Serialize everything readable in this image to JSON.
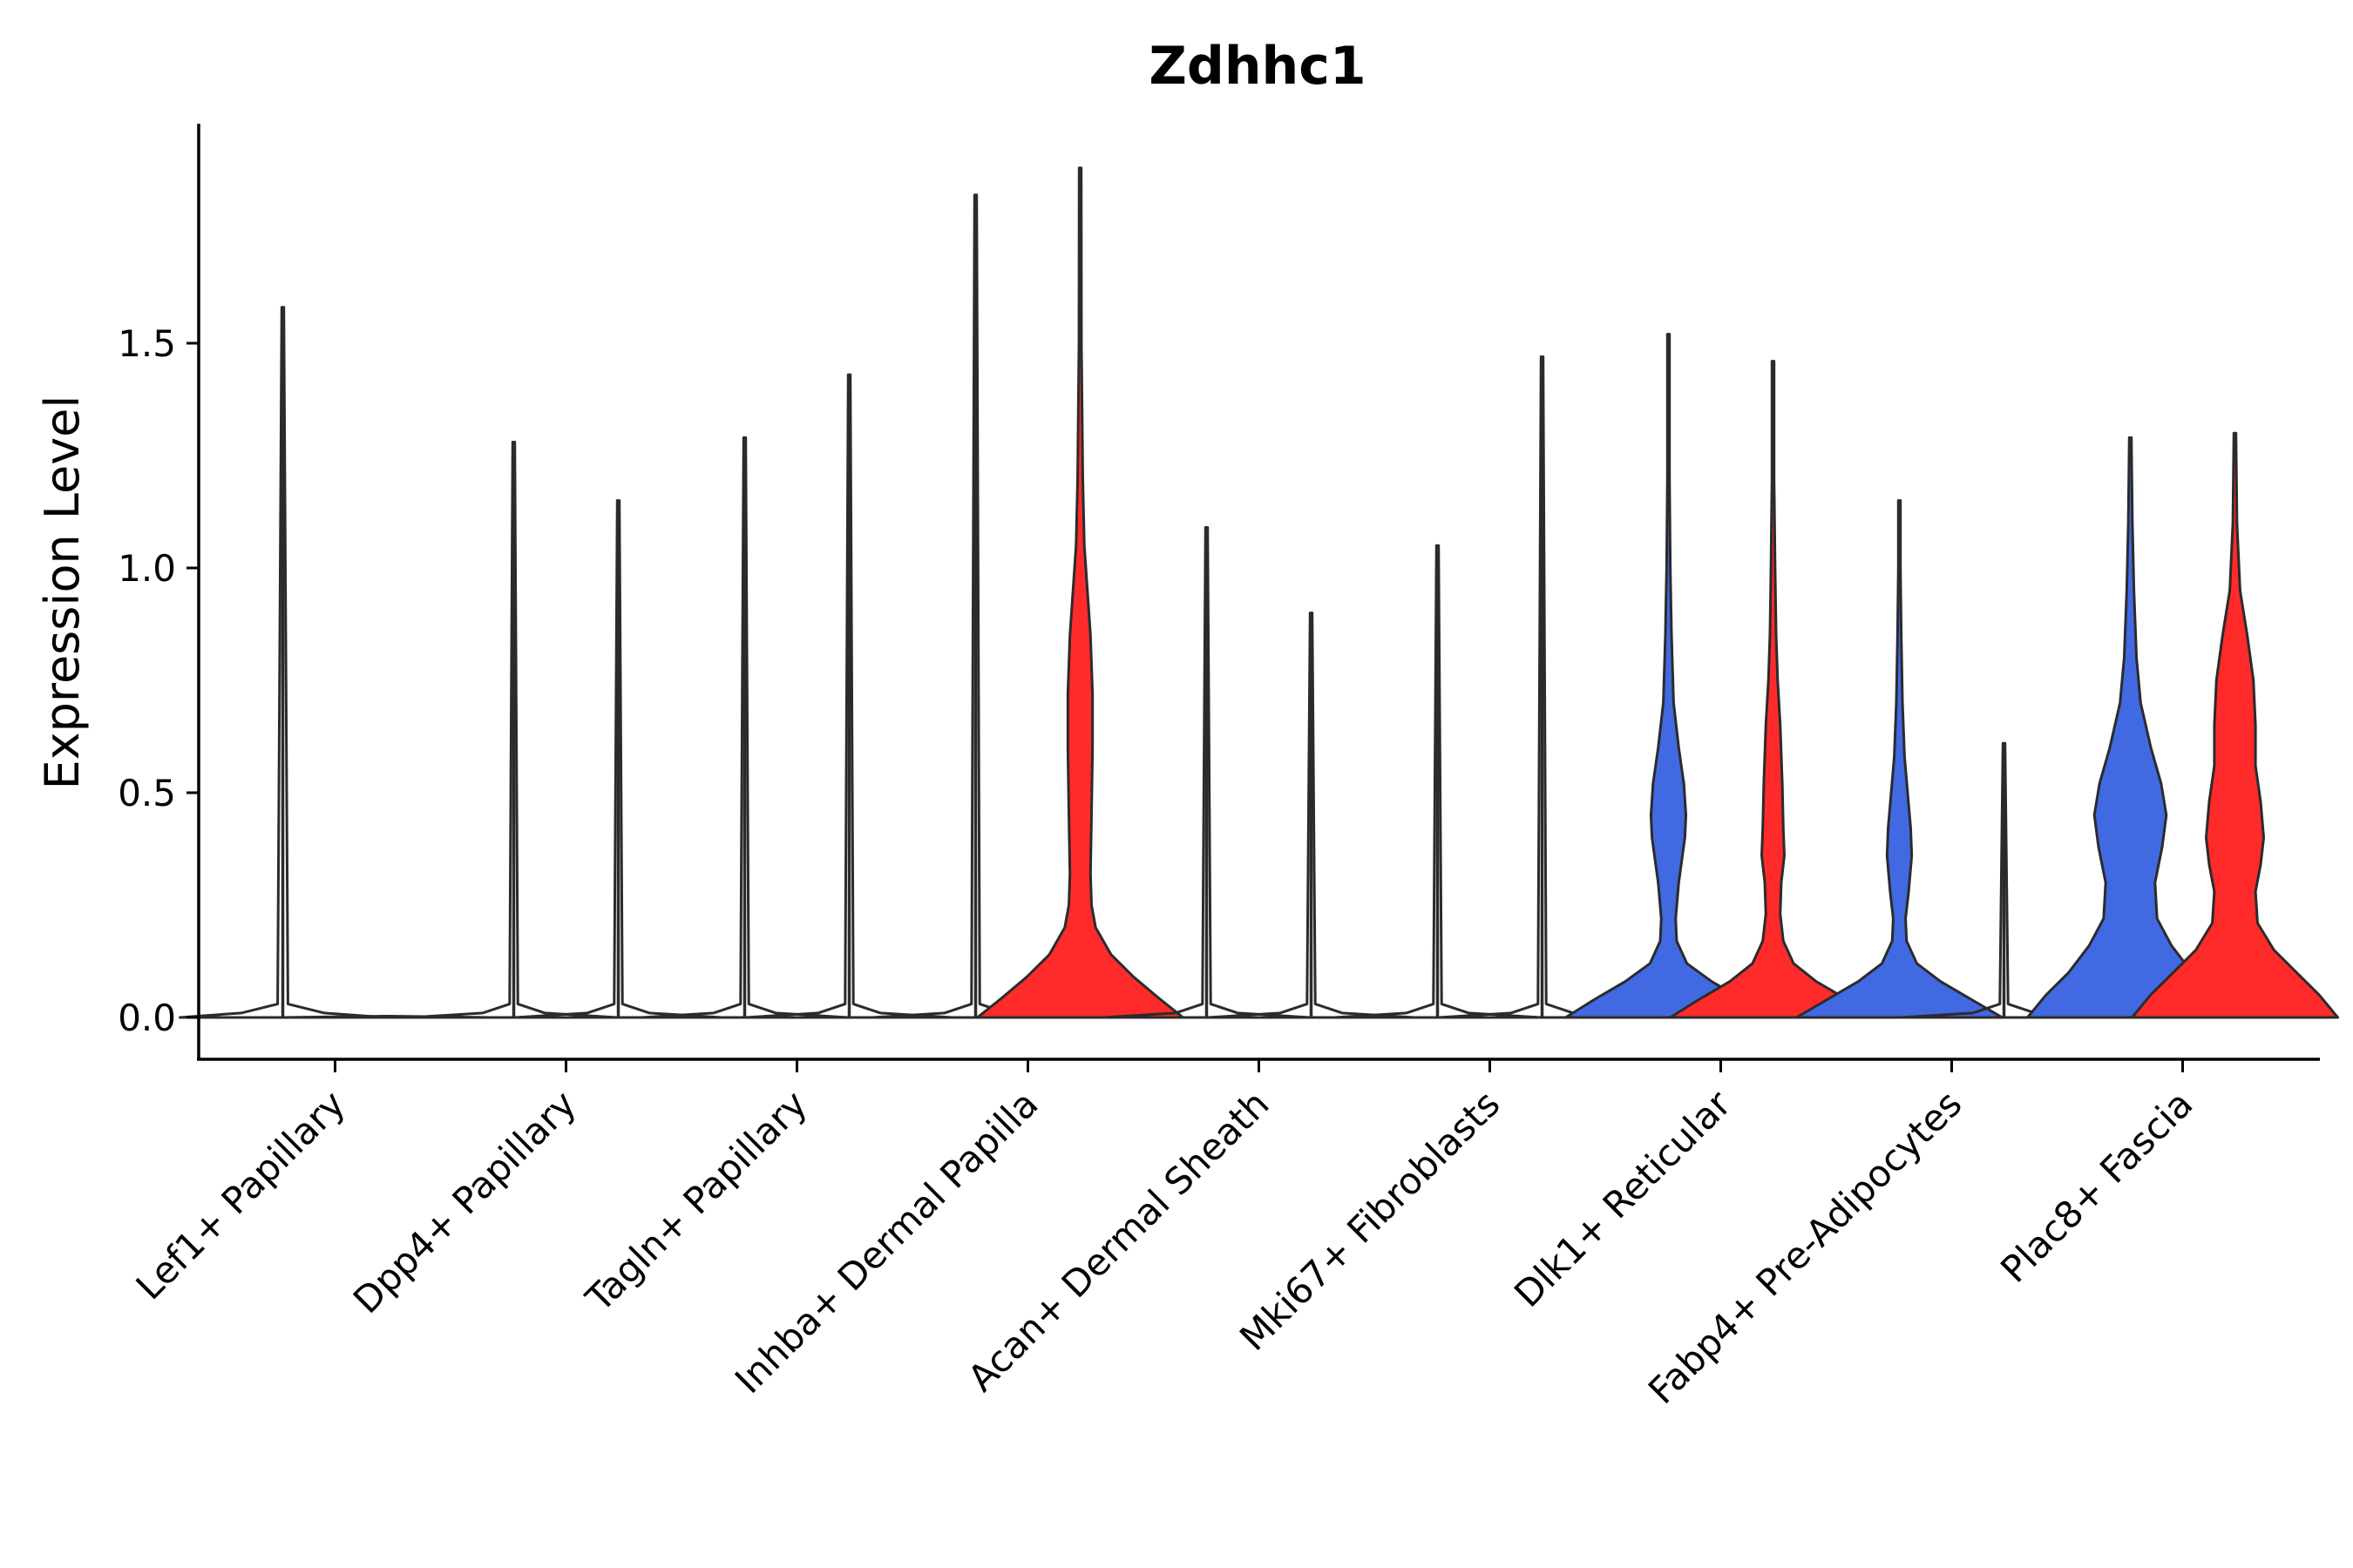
{
  "chart_data": {
    "type": "violin",
    "title": "Zdhhc1",
    "xlabel": "",
    "ylabel": "Expression Level",
    "ylim": [
      -0.1,
      1.98
    ],
    "yticks": [
      "0.0",
      "0.5",
      "1.0",
      "1.5"
    ],
    "ytick_values": [
      0,
      0.5,
      1.0,
      1.5
    ],
    "categories": [
      "Lef1+ Papillary",
      "Dpp4+ Papillary",
      "Tagln+ Papillary",
      "Inhba+ Dermal Papilla",
      "Acan+ Dermal Sheath",
      "Mki67+ Fibroblasts",
      "Dlk1+ Reticular",
      "Fabp4+ Pre-Adipocytes",
      "Plac8+ Fascia"
    ],
    "colors": {
      "blue": "#4169E1",
      "red": "#FF2A2A",
      "outline": "#2b2b2b"
    },
    "violins": [
      {
        "category": 0,
        "side": "left",
        "color": "blue",
        "max": 1.58,
        "profile": [
          [
            0,
            1.0
          ],
          [
            0.01,
            0.4
          ],
          [
            0.03,
            0.05
          ],
          [
            1.58,
            0.0
          ]
        ]
      },
      {
        "category": 0,
        "side": "right",
        "color": "red",
        "max": 0.0,
        "profile": [
          [
            0,
            1.0
          ],
          [
            0.003,
            0.0
          ]
        ]
      },
      {
        "category": 1,
        "side": "left",
        "color": "blue",
        "max": 1.28,
        "profile": [
          [
            0,
            1.0
          ],
          [
            0.01,
            0.3
          ],
          [
            0.03,
            0.04
          ],
          [
            1.28,
            0.0
          ]
        ]
      },
      {
        "category": 1,
        "side": "right",
        "color": "red",
        "max": 1.15,
        "profile": [
          [
            0,
            1.0
          ],
          [
            0.01,
            0.3
          ],
          [
            0.03,
            0.04
          ],
          [
            1.15,
            0.0
          ]
        ]
      },
      {
        "category": 2,
        "side": "left",
        "color": "blue",
        "max": 1.29,
        "profile": [
          [
            0,
            1.0
          ],
          [
            0.01,
            0.3
          ],
          [
            0.03,
            0.04
          ],
          [
            1.29,
            0.0
          ]
        ]
      },
      {
        "category": 2,
        "side": "right",
        "color": "red",
        "max": 1.43,
        "profile": [
          [
            0,
            1.0
          ],
          [
            0.01,
            0.3
          ],
          [
            0.03,
            0.04
          ],
          [
            1.43,
            0.0
          ]
        ]
      },
      {
        "category": 3,
        "side": "left",
        "color": "blue",
        "max": 1.83,
        "profile": [
          [
            0,
            1.0
          ],
          [
            0.01,
            0.3
          ],
          [
            0.03,
            0.04
          ],
          [
            1.83,
            0.0
          ]
        ]
      },
      {
        "category": 3,
        "side": "right",
        "color": "red",
        "max": 1.89,
        "fill": true,
        "profile": [
          [
            0,
            1.0
          ],
          [
            0.04,
            0.78
          ],
          [
            0.09,
            0.52
          ],
          [
            0.14,
            0.3
          ],
          [
            0.2,
            0.15
          ],
          [
            0.25,
            0.11
          ],
          [
            0.32,
            0.1
          ],
          [
            0.45,
            0.11
          ],
          [
            0.6,
            0.12
          ],
          [
            0.72,
            0.12
          ],
          [
            0.85,
            0.1
          ],
          [
            0.95,
            0.07
          ],
          [
            1.05,
            0.04
          ],
          [
            1.2,
            0.025
          ],
          [
            1.5,
            0.012
          ],
          [
            1.89,
            0.0
          ]
        ]
      },
      {
        "category": 4,
        "side": "left",
        "color": "blue",
        "max": 1.09,
        "profile": [
          [
            0,
            1.0
          ],
          [
            0.01,
            0.3
          ],
          [
            0.03,
            0.04
          ],
          [
            1.09,
            0.0
          ]
        ]
      },
      {
        "category": 4,
        "side": "right",
        "color": "red",
        "max": 0.9,
        "profile": [
          [
            0,
            1.0
          ],
          [
            0.01,
            0.3
          ],
          [
            0.03,
            0.04
          ],
          [
            0.9,
            0.0
          ]
        ]
      },
      {
        "category": 5,
        "side": "left",
        "color": "blue",
        "max": 1.05,
        "profile": [
          [
            0,
            1.0
          ],
          [
            0.01,
            0.3
          ],
          [
            0.03,
            0.04
          ],
          [
            1.05,
            0.0
          ]
        ]
      },
      {
        "category": 5,
        "side": "right",
        "color": "red",
        "max": 1.47,
        "profile": [
          [
            0,
            1.0
          ],
          [
            0.01,
            0.3
          ],
          [
            0.03,
            0.04
          ],
          [
            1.47,
            0.0
          ]
        ]
      },
      {
        "category": 6,
        "side": "left",
        "color": "blue",
        "max": 1.52,
        "fill": true,
        "profile": [
          [
            0,
            1.0
          ],
          [
            0.04,
            0.72
          ],
          [
            0.08,
            0.42
          ],
          [
            0.12,
            0.18
          ],
          [
            0.17,
            0.08
          ],
          [
            0.22,
            0.07
          ],
          [
            0.3,
            0.1
          ],
          [
            0.4,
            0.16
          ],
          [
            0.45,
            0.17
          ],
          [
            0.52,
            0.15
          ],
          [
            0.6,
            0.1
          ],
          [
            0.7,
            0.05
          ],
          [
            0.85,
            0.03
          ],
          [
            1.0,
            0.018
          ],
          [
            1.2,
            0.01
          ],
          [
            1.52,
            0.0
          ]
        ]
      },
      {
        "category": 6,
        "side": "right",
        "color": "red",
        "max": 1.46,
        "fill": true,
        "profile": [
          [
            0,
            1.0
          ],
          [
            0.04,
            0.72
          ],
          [
            0.08,
            0.42
          ],
          [
            0.12,
            0.2
          ],
          [
            0.17,
            0.1
          ],
          [
            0.23,
            0.07
          ],
          [
            0.3,
            0.08
          ],
          [
            0.36,
            0.11
          ],
          [
            0.42,
            0.1
          ],
          [
            0.52,
            0.09
          ],
          [
            0.65,
            0.07
          ],
          [
            0.75,
            0.045
          ],
          [
            0.85,
            0.03
          ],
          [
            1.0,
            0.02
          ],
          [
            1.2,
            0.01
          ],
          [
            1.46,
            0.0
          ]
        ]
      },
      {
        "category": 7,
        "side": "left",
        "color": "blue",
        "max": 1.15,
        "fill": true,
        "profile": [
          [
            0,
            1.0
          ],
          [
            0.04,
            0.7
          ],
          [
            0.08,
            0.4
          ],
          [
            0.12,
            0.17
          ],
          [
            0.17,
            0.07
          ],
          [
            0.22,
            0.06
          ],
          [
            0.28,
            0.09
          ],
          [
            0.36,
            0.12
          ],
          [
            0.42,
            0.11
          ],
          [
            0.5,
            0.08
          ],
          [
            0.58,
            0.05
          ],
          [
            0.7,
            0.03
          ],
          [
            0.85,
            0.018
          ],
          [
            1.0,
            0.01
          ],
          [
            1.15,
            0.0
          ]
        ]
      },
      {
        "category": 7,
        "side": "right",
        "color": "red",
        "max": 0.61,
        "profile": [
          [
            0,
            1.0
          ],
          [
            0.01,
            0.3
          ],
          [
            0.03,
            0.04
          ],
          [
            0.61,
            0.0
          ]
        ]
      },
      {
        "category": 8,
        "side": "left",
        "color": "blue",
        "max": 1.29,
        "fill": true,
        "profile": [
          [
            0,
            1.0
          ],
          [
            0.05,
            0.82
          ],
          [
            0.1,
            0.6
          ],
          [
            0.16,
            0.4
          ],
          [
            0.22,
            0.26
          ],
          [
            0.3,
            0.24
          ],
          [
            0.38,
            0.31
          ],
          [
            0.45,
            0.35
          ],
          [
            0.52,
            0.3
          ],
          [
            0.6,
            0.2
          ],
          [
            0.7,
            0.1
          ],
          [
            0.8,
            0.06
          ],
          [
            0.95,
            0.035
          ],
          [
            1.1,
            0.02
          ],
          [
            1.29,
            0.0
          ]
        ]
      },
      {
        "category": 8,
        "side": "right",
        "color": "red",
        "max": 1.3,
        "fill": true,
        "profile": [
          [
            0,
            1.0
          ],
          [
            0.05,
            0.82
          ],
          [
            0.1,
            0.6
          ],
          [
            0.15,
            0.38
          ],
          [
            0.21,
            0.22
          ],
          [
            0.28,
            0.2
          ],
          [
            0.34,
            0.25
          ],
          [
            0.4,
            0.28
          ],
          [
            0.48,
            0.25
          ],
          [
            0.56,
            0.2
          ],
          [
            0.65,
            0.2
          ],
          [
            0.75,
            0.18
          ],
          [
            0.85,
            0.12
          ],
          [
            0.95,
            0.05
          ],
          [
            1.1,
            0.02
          ],
          [
            1.3,
            0.0
          ]
        ]
      }
    ]
  }
}
